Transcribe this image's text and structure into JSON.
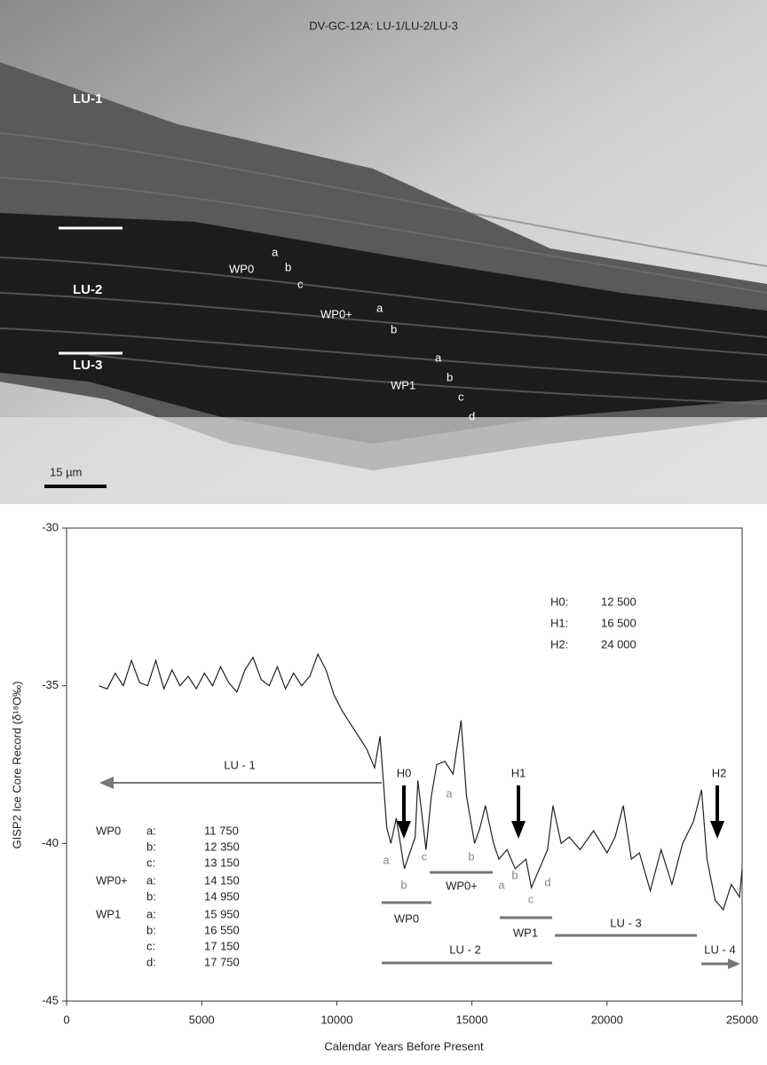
{
  "image": {
    "title": "DV-GC-12A: LU-1/LU-2/LU-3",
    "labels": [
      "LU-1",
      "LU-2",
      "LU-3",
      "WP0",
      "a",
      "b",
      "c",
      "WP0+",
      "a",
      "b",
      "WP1",
      "a",
      "b",
      "c",
      "d"
    ],
    "scale_bar": "15 µm"
  },
  "chart_data": {
    "type": "line",
    "ylabel": "GISP2 Ice Core Record (δ¹⁸O‰)",
    "xlabel": "Calendar Years Before Present",
    "xlim": [
      0,
      25000
    ],
    "ylim": [
      -45,
      -30
    ],
    "xticks": [
      0,
      5000,
      10000,
      15000,
      20000,
      25000
    ],
    "yticks": [
      -45,
      -40,
      -35,
      -30
    ],
    "color": "#222222",
    "x": [
      1200,
      1500,
      1800,
      2100,
      2400,
      2700,
      3000,
      3300,
      3600,
      3900,
      4200,
      4500,
      4800,
      5100,
      5400,
      5700,
      6000,
      6300,
      6600,
      6900,
      7200,
      7500,
      7800,
      8100,
      8400,
      8700,
      9000,
      9300,
      9600,
      9900,
      10200,
      10500,
      10800,
      11100,
      11400,
      11600,
      11850,
      12000,
      12200,
      12500,
      12900,
      13000,
      13300,
      13500,
      13700,
      14000,
      14300,
      14600,
      14800,
      15100,
      15300,
      15500,
      15800,
      16000,
      16300,
      16600,
      17000,
      17200,
      17500,
      17800,
      18000,
      18300,
      18600,
      19000,
      19500,
      20000,
      20300,
      20600,
      20900,
      21200,
      21600,
      22000,
      22400,
      22800,
      23200,
      23500,
      23700,
      24000,
      24300,
      24600,
      24900,
      25000
    ],
    "values": [
      -35.0,
      -35.1,
      -34.6,
      -35.0,
      -34.2,
      -34.9,
      -35.0,
      -34.2,
      -35.1,
      -34.5,
      -35.0,
      -34.7,
      -35.1,
      -34.6,
      -35.0,
      -34.4,
      -34.9,
      -35.2,
      -34.5,
      -34.1,
      -34.8,
      -35.0,
      -34.4,
      -35.1,
      -34.6,
      -35.0,
      -34.7,
      -34.0,
      -34.5,
      -35.3,
      -35.8,
      -36.2,
      -36.6,
      -37.0,
      -37.6,
      -36.6,
      -39.5,
      -40.0,
      -39.2,
      -40.8,
      -39.8,
      -38.0,
      -40.2,
      -38.5,
      -37.5,
      -37.4,
      -37.8,
      -36.1,
      -38.5,
      -40.0,
      -39.5,
      -38.8,
      -40.0,
      -40.5,
      -40.2,
      -40.8,
      -40.5,
      -41.4,
      -40.8,
      -40.2,
      -38.8,
      -40.0,
      -39.8,
      -40.2,
      -39.6,
      -40.3,
      -39.8,
      -38.8,
      -40.5,
      -40.3,
      -41.5,
      -40.2,
      -41.3,
      -40.0,
      -39.3,
      -38.3,
      -40.5,
      -41.8,
      -42.1,
      -41.3,
      -41.7,
      -40.8
    ],
    "events": [
      {
        "name": "H0:",
        "year": "12 500"
      },
      {
        "name": "H1:",
        "year": "16 500"
      },
      {
        "name": "H2:",
        "year": "24 000"
      }
    ],
    "event_markers": [
      "H0",
      "H1",
      "H2"
    ],
    "curve_labels": [
      "a",
      "a",
      "b",
      "c",
      "b",
      "a",
      "b",
      "c",
      "d"
    ],
    "spans": [
      "LU - 1",
      "LU - 2",
      "LU - 3",
      "LU - 4",
      "WP0",
      "WP0+",
      "WP1"
    ],
    "wp_table": [
      {
        "name": "WP0",
        "rows": [
          [
            "a:",
            "11 750"
          ],
          [
            "b:",
            "12 350"
          ],
          [
            "c:",
            "13 150"
          ]
        ]
      },
      {
        "name": "WP0+",
        "rows": [
          [
            "a:",
            "14 150"
          ],
          [
            "b:",
            "14 950"
          ]
        ]
      },
      {
        "name": "WP1",
        "rows": [
          [
            "a:",
            "15 950"
          ],
          [
            "b:",
            "16 550"
          ],
          [
            "c:",
            "17 150"
          ],
          [
            "d:",
            "17 750"
          ]
        ]
      }
    ]
  }
}
